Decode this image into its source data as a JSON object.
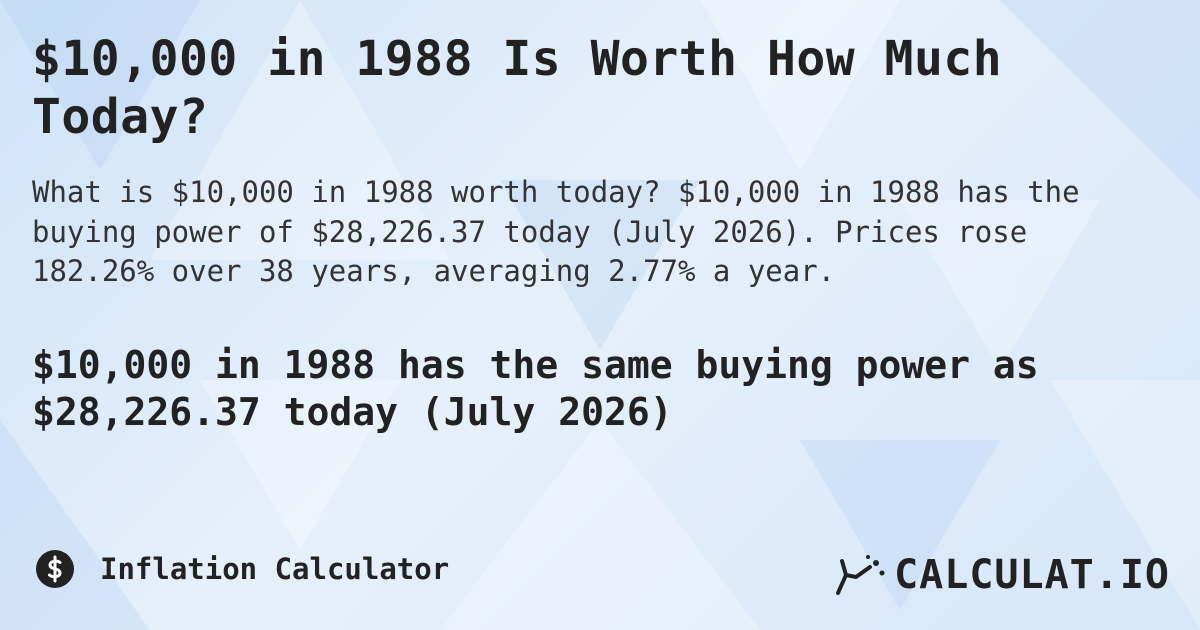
{
  "header": {
    "title": "$10,000 in 1988 Is Worth How Much Today?"
  },
  "summary": "What is $10,000 in 1988 worth today? $10,000 in 1988 has the buying power of $28,226.37 today (July 2026). Prices rose 182.26% over 38 years, averaging 2.77% a year.",
  "highlight": "$10,000 in 1988 has the same buying power as $28,226.37 today (July 2026)",
  "footer": {
    "category": "Inflation Calculator",
    "brand": "CALCULAT.IO"
  }
}
